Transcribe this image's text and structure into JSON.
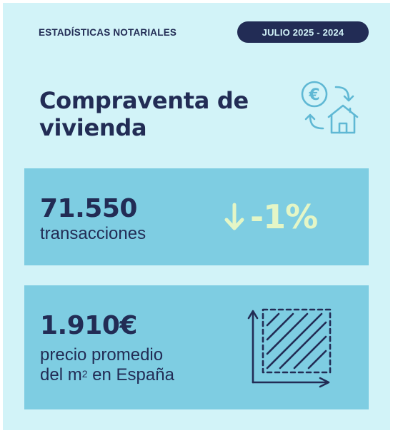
{
  "header": {
    "label": "ESTADÍSTICAS NOTARIALES",
    "period": "JULIO 2025 - 2024"
  },
  "title": {
    "line1": "Compraventa de",
    "line2": "vivienda"
  },
  "transactions": {
    "value": "71.550",
    "label": "transacciones",
    "change": "-1%",
    "change_direction": "down"
  },
  "price": {
    "value": "1.910€",
    "label_line1": "precio promedio",
    "label_line2_pre": "del m",
    "label_line2_sup": "2",
    "label_line2_post": " en España"
  },
  "colors": {
    "background": "#d2f3f8",
    "card": "#7ecde2",
    "navy": "#222c55",
    "accent_light": "#e4f6c6",
    "icon_line": "#5fb8d4"
  },
  "icons": {
    "hero": "euro-house-exchange-icon",
    "change": "arrow-down-icon",
    "area": "square-meter-area-icon"
  }
}
